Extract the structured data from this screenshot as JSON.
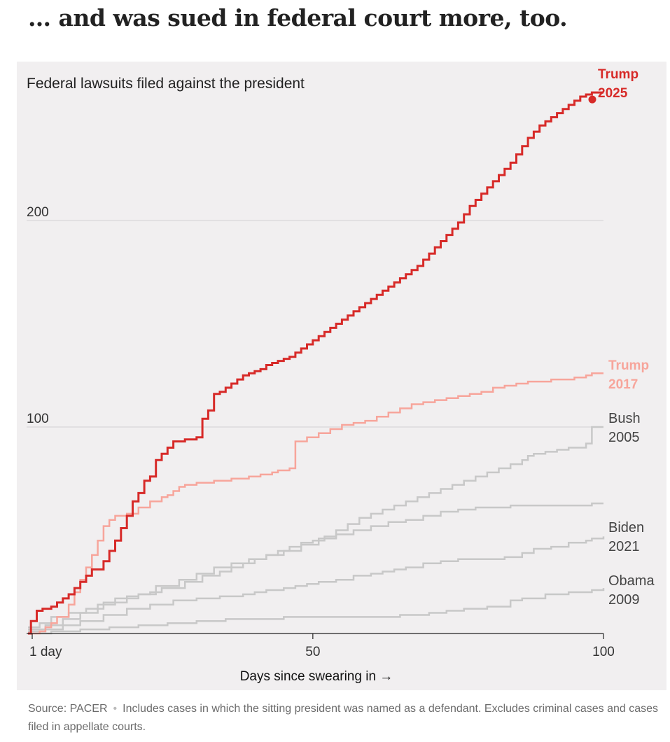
{
  "headline": "… and was sued in federal court more, too.",
  "footer": {
    "source": "Source: PACER",
    "separator": "•",
    "note": "Includes cases in which the sitting president was named as a defendant. Excludes criminal cases and cases filed in appellate courts."
  },
  "chart_data": {
    "type": "line",
    "step": true,
    "title": "Federal lawsuits filed against the president",
    "xlabel": "Days since swearing in →",
    "ylabel": "",
    "xlim": [
      1,
      100
    ],
    "ylim": [
      0,
      265
    ],
    "x_ticks": [
      {
        "value": 1,
        "label": "1 day"
      },
      {
        "value": 50,
        "label": "50"
      },
      {
        "value": 100,
        "label": "100"
      }
    ],
    "y_ticks": [
      {
        "value": 100,
        "label": "100"
      },
      {
        "value": 200,
        "label": "200"
      }
    ],
    "grid": true,
    "series": [
      {
        "id": "obama",
        "name_lines": [
          "Obama",
          "2009"
        ],
        "color": "#c8c8c8",
        "emphasis": false,
        "points": [
          [
            1,
            0
          ],
          [
            5,
            1
          ],
          [
            10,
            2
          ],
          [
            15,
            3
          ],
          [
            20,
            4
          ],
          [
            25,
            5
          ],
          [
            30,
            6
          ],
          [
            35,
            7
          ],
          [
            40,
            7
          ],
          [
            45,
            8
          ],
          [
            50,
            8
          ],
          [
            55,
            8
          ],
          [
            60,
            8
          ],
          [
            65,
            9
          ],
          [
            68,
            9
          ],
          [
            70,
            10
          ],
          [
            73,
            11
          ],
          [
            76,
            12
          ],
          [
            80,
            13
          ],
          [
            84,
            16
          ],
          [
            86,
            17
          ],
          [
            90,
            19
          ],
          [
            94,
            20
          ],
          [
            98,
            21
          ],
          [
            100,
            22
          ]
        ]
      },
      {
        "id": "biden",
        "name_lines": [
          "Biden",
          "2021"
        ],
        "color": "#c8c8c8",
        "emphasis": false,
        "points": [
          [
            1,
            1
          ],
          [
            4,
            2
          ],
          [
            7,
            4
          ],
          [
            10,
            6
          ],
          [
            14,
            9
          ],
          [
            18,
            12
          ],
          [
            22,
            14
          ],
          [
            26,
            16
          ],
          [
            30,
            17
          ],
          [
            34,
            18
          ],
          [
            38,
            19
          ],
          [
            40,
            20
          ],
          [
            42,
            21
          ],
          [
            45,
            22
          ],
          [
            47,
            23
          ],
          [
            49,
            24
          ],
          [
            51,
            25
          ],
          [
            54,
            26
          ],
          [
            57,
            28
          ],
          [
            60,
            29
          ],
          [
            62,
            30
          ],
          [
            64,
            31
          ],
          [
            66,
            32
          ],
          [
            69,
            34
          ],
          [
            72,
            35
          ],
          [
            75,
            36
          ],
          [
            79,
            36
          ],
          [
            83,
            37
          ],
          [
            86,
            39
          ],
          [
            88,
            41
          ],
          [
            91,
            42
          ],
          [
            94,
            44
          ],
          [
            97,
            45
          ],
          [
            98,
            46
          ],
          [
            100,
            47
          ]
        ]
      },
      {
        "id": "bush",
        "name_lines": [
          "Bush",
          "2005"
        ],
        "color": "#c8c8c8",
        "emphasis": false,
        "points": [
          [
            1,
            3
          ],
          [
            3,
            5
          ],
          [
            5,
            8
          ],
          [
            8,
            10
          ],
          [
            11,
            12
          ],
          [
            14,
            15
          ],
          [
            18,
            18
          ],
          [
            20,
            19
          ],
          [
            22,
            20
          ],
          [
            24,
            22
          ],
          [
            28,
            25
          ],
          [
            31,
            28
          ],
          [
            34,
            30
          ],
          [
            36,
            32
          ],
          [
            38,
            34
          ],
          [
            40,
            36
          ],
          [
            42,
            38
          ],
          [
            44,
            40
          ],
          [
            46,
            42
          ],
          [
            48,
            44
          ],
          [
            50,
            45
          ],
          [
            52,
            47
          ],
          [
            54,
            50
          ],
          [
            56,
            53
          ],
          [
            58,
            56
          ],
          [
            60,
            58
          ],
          [
            62,
            60
          ],
          [
            64,
            62
          ],
          [
            66,
            64
          ],
          [
            68,
            66
          ],
          [
            70,
            68
          ],
          [
            72,
            70
          ],
          [
            74,
            72
          ],
          [
            76,
            74
          ],
          [
            78,
            76
          ],
          [
            80,
            78
          ],
          [
            82,
            80
          ],
          [
            84,
            82
          ],
          [
            86,
            84
          ],
          [
            87,
            86
          ],
          [
            88,
            87
          ],
          [
            90,
            88
          ],
          [
            92,
            89
          ],
          [
            94,
            90
          ],
          [
            96,
            90
          ],
          [
            97,
            92
          ],
          [
            98,
            100
          ],
          [
            100,
            100
          ]
        ]
      },
      {
        "id": "obama_alt",
        "name_lines": [],
        "color": "#c8c8c8",
        "emphasis": false,
        "points": [
          [
            1,
            2
          ],
          [
            4,
            4
          ],
          [
            7,
            7
          ],
          [
            10,
            10
          ],
          [
            13,
            14
          ],
          [
            16,
            17
          ],
          [
            20,
            19
          ],
          [
            23,
            23
          ],
          [
            27,
            26
          ],
          [
            30,
            29
          ],
          [
            33,
            32
          ],
          [
            36,
            34
          ],
          [
            39,
            36
          ],
          [
            42,
            38
          ],
          [
            45,
            40
          ],
          [
            48,
            43
          ],
          [
            51,
            46
          ],
          [
            54,
            48
          ],
          [
            57,
            50
          ],
          [
            60,
            52
          ],
          [
            63,
            54
          ],
          [
            66,
            55
          ],
          [
            69,
            57
          ],
          [
            72,
            59
          ],
          [
            75,
            60
          ],
          [
            78,
            61
          ],
          [
            81,
            61
          ],
          [
            84,
            62
          ],
          [
            87,
            62
          ],
          [
            90,
            62
          ],
          [
            93,
            62
          ],
          [
            96,
            62
          ],
          [
            98,
            63
          ],
          [
            100,
            63
          ]
        ]
      },
      {
        "id": "trump2017",
        "name_lines": [
          "Trump",
          "2017"
        ],
        "color": "#f7a59b",
        "emphasis": true,
        "points": [
          [
            1,
            0
          ],
          [
            3,
            1
          ],
          [
            4,
            3
          ],
          [
            5,
            5
          ],
          [
            6,
            8
          ],
          [
            8,
            14
          ],
          [
            9,
            20
          ],
          [
            10,
            26
          ],
          [
            11,
            32
          ],
          [
            12,
            38
          ],
          [
            13,
            45
          ],
          [
            14,
            52
          ],
          [
            15,
            55
          ],
          [
            16,
            57
          ],
          [
            18,
            58
          ],
          [
            20,
            61
          ],
          [
            22,
            64
          ],
          [
            24,
            66
          ],
          [
            25,
            67
          ],
          [
            26,
            69
          ],
          [
            27,
            71
          ],
          [
            28,
            72
          ],
          [
            30,
            73
          ],
          [
            33,
            74
          ],
          [
            36,
            75
          ],
          [
            39,
            76
          ],
          [
            41,
            77
          ],
          [
            43,
            78
          ],
          [
            44,
            79
          ],
          [
            46,
            80
          ],
          [
            47,
            93
          ],
          [
            49,
            95
          ],
          [
            51,
            97
          ],
          [
            53,
            99
          ],
          [
            55,
            101
          ],
          [
            57,
            102
          ],
          [
            59,
            103
          ],
          [
            61,
            105
          ],
          [
            63,
            107
          ],
          [
            65,
            109
          ],
          [
            67,
            111
          ],
          [
            69,
            112
          ],
          [
            71,
            113
          ],
          [
            73,
            114
          ],
          [
            75,
            115
          ],
          [
            77,
            116
          ],
          [
            79,
            117
          ],
          [
            81,
            119
          ],
          [
            83,
            120
          ],
          [
            85,
            121
          ],
          [
            87,
            122
          ],
          [
            89,
            122
          ],
          [
            91,
            123
          ],
          [
            93,
            123
          ],
          [
            95,
            124
          ],
          [
            97,
            125
          ],
          [
            98,
            126
          ],
          [
            100,
            126
          ]
        ]
      },
      {
        "id": "trump2025",
        "name_lines": [
          "Trump",
          "2025"
        ],
        "color": "#d72a28",
        "emphasis": true,
        "points": [
          [
            1,
            0
          ],
          [
            1.5,
            6
          ],
          [
            2.5,
            11
          ],
          [
            3.5,
            12
          ],
          [
            5,
            13
          ],
          [
            6,
            15
          ],
          [
            7,
            17
          ],
          [
            8,
            19
          ],
          [
            9,
            22
          ],
          [
            10,
            25
          ],
          [
            11,
            28
          ],
          [
            12,
            31
          ],
          [
            14,
            35
          ],
          [
            15,
            40
          ],
          [
            16,
            45
          ],
          [
            17,
            51
          ],
          [
            18,
            57
          ],
          [
            19,
            64
          ],
          [
            20,
            68
          ],
          [
            21,
            74
          ],
          [
            22,
            76
          ],
          [
            23,
            84
          ],
          [
            24,
            87
          ],
          [
            25,
            90
          ],
          [
            26,
            93
          ],
          [
            28,
            94
          ],
          [
            30,
            95
          ],
          [
            31,
            104
          ],
          [
            32,
            108
          ],
          [
            33,
            116
          ],
          [
            34,
            117
          ],
          [
            35,
            119
          ],
          [
            36,
            121
          ],
          [
            37,
            123
          ],
          [
            38,
            125
          ],
          [
            39,
            126
          ],
          [
            40,
            127
          ],
          [
            41,
            128
          ],
          [
            42,
            130
          ],
          [
            43,
            131
          ],
          [
            44,
            132
          ],
          [
            45,
            133
          ],
          [
            46,
            134
          ],
          [
            47,
            136
          ],
          [
            48,
            138
          ],
          [
            49,
            140
          ],
          [
            50,
            142
          ],
          [
            51,
            144
          ],
          [
            52,
            146
          ],
          [
            53,
            148
          ],
          [
            54,
            150
          ],
          [
            55,
            152
          ],
          [
            56,
            154
          ],
          [
            57,
            156
          ],
          [
            58,
            158
          ],
          [
            59,
            160
          ],
          [
            60,
            162
          ],
          [
            61,
            164
          ],
          [
            62,
            166
          ],
          [
            63,
            168
          ],
          [
            64,
            170
          ],
          [
            65,
            172
          ],
          [
            66,
            174
          ],
          [
            67,
            176
          ],
          [
            68,
            178
          ],
          [
            69,
            181
          ],
          [
            70,
            184
          ],
          [
            71,
            187
          ],
          [
            72,
            190
          ],
          [
            73,
            193
          ],
          [
            74,
            196
          ],
          [
            75,
            199
          ],
          [
            76,
            203
          ],
          [
            77,
            207
          ],
          [
            78,
            210
          ],
          [
            79,
            213
          ],
          [
            80,
            216
          ],
          [
            81,
            219
          ],
          [
            82,
            222
          ],
          [
            83,
            225
          ],
          [
            84,
            228
          ],
          [
            85,
            232
          ],
          [
            86,
            236
          ],
          [
            87,
            240
          ],
          [
            88,
            243
          ],
          [
            89,
            246
          ],
          [
            90,
            248
          ],
          [
            91,
            250
          ],
          [
            92,
            252
          ],
          [
            93,
            254
          ],
          [
            94,
            256
          ],
          [
            95,
            258
          ],
          [
            96,
            260
          ],
          [
            97,
            261
          ],
          [
            98,
            262
          ],
          [
            99,
            262
          ],
          [
            100,
            262
          ]
        ]
      }
    ]
  }
}
